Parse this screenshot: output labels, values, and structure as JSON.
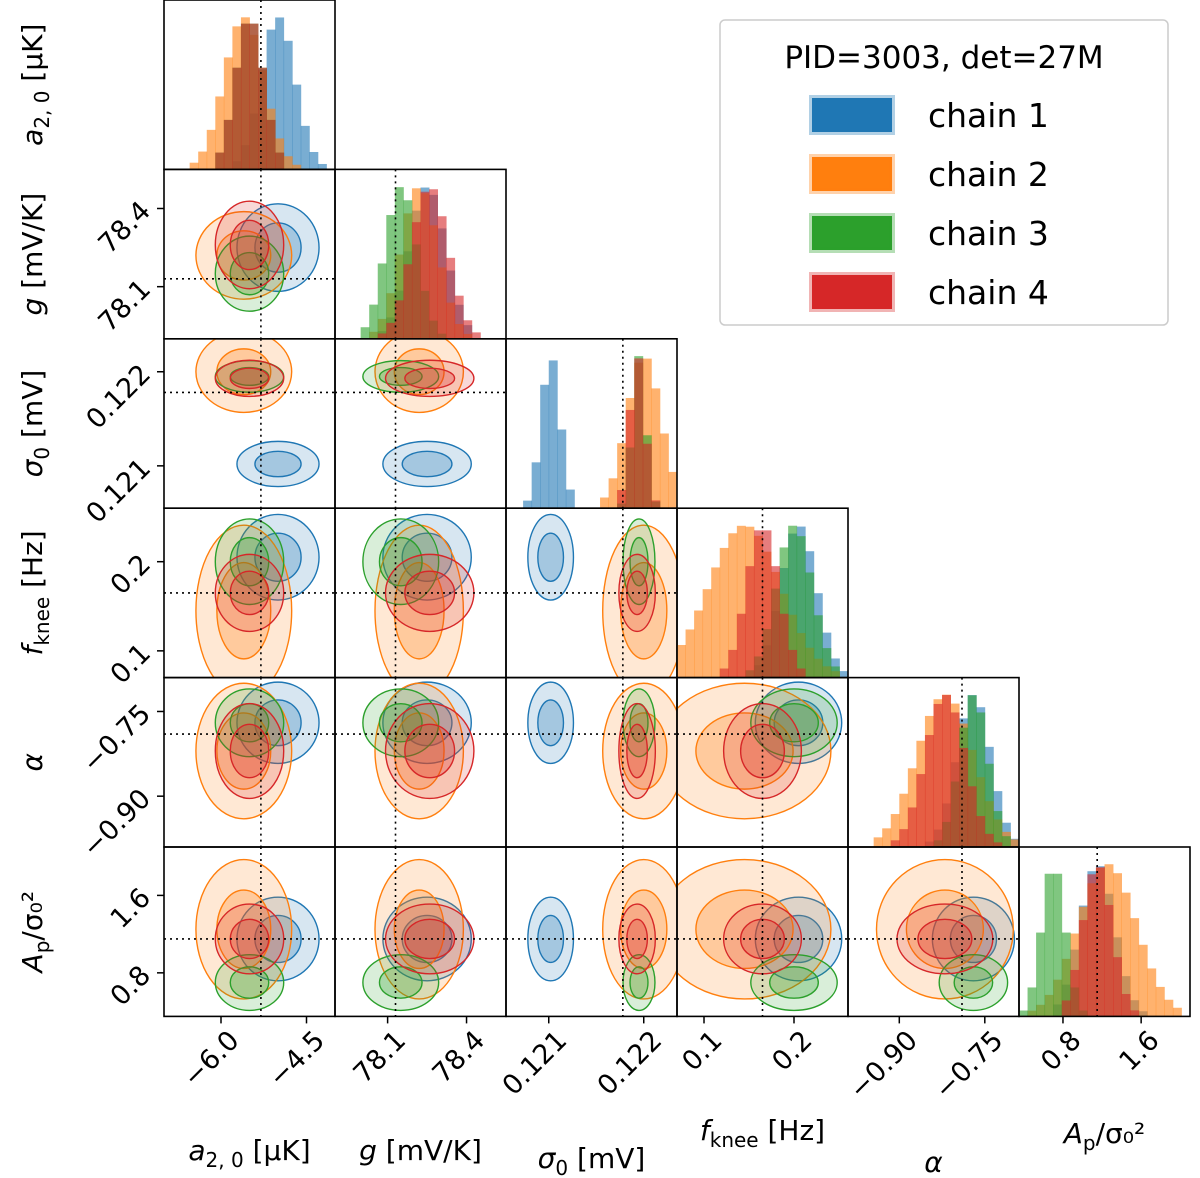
{
  "chart_data": {
    "type": "corner",
    "legend": {
      "title": "PID=3003, det=27M",
      "placement": "top-right"
    },
    "series": [
      {
        "name": "chain 1",
        "color": "#1f77b4"
      },
      {
        "name": "chain 2",
        "color": "#ff7f0e"
      },
      {
        "name": "chain 3",
        "color": "#2ca02c"
      },
      {
        "name": "chain 4",
        "color": "#d62728"
      }
    ],
    "parameters": [
      {
        "key": "a20",
        "label_main": "a",
        "label_sub": "2, 0",
        "label_unit": " [μK]",
        "truth": -5.3,
        "range": [
          -7.0,
          -4.0
        ],
        "ticks": [
          -6.0,
          -4.5
        ],
        "tick_labels": [
          "−6.0",
          "−4.5"
        ],
        "means": [
          -5.0,
          -5.6,
          -5.5,
          -5.5
        ],
        "sds": [
          0.3,
          0.35,
          0.25,
          0.25
        ]
      },
      {
        "key": "g",
        "label_main": "g",
        "label_sub": "",
        "label_unit": " [mV/K]",
        "truth": 78.13,
        "range": [
          77.9,
          78.55
        ],
        "ticks": [
          78.1,
          78.4
        ],
        "tick_labels": [
          "78.1",
          "78.4"
        ],
        "means": [
          78.25,
          78.22,
          78.15,
          78.26
        ],
        "sds": [
          0.07,
          0.07,
          0.06,
          0.07
        ]
      },
      {
        "key": "sigma0",
        "label_main": "σ",
        "label_sub": "0",
        "label_unit": " [mV]",
        "truth": 0.12178,
        "range": [
          0.12055,
          0.12235
        ],
        "ticks": [
          0.121,
          0.122
        ],
        "tick_labels": [
          "0.121",
          "0.122"
        ],
        "means": [
          0.12102,
          0.122,
          0.12195,
          0.12193
        ],
        "sds": [
          0.0001,
          0.00018,
          7e-05,
          8e-05
        ]
      },
      {
        "key": "fknee",
        "label_main": "f",
        "label_sub": "knee",
        "label_unit": " [Hz]",
        "truth": 0.165,
        "range": [
          0.07,
          0.26
        ],
        "ticks": [
          0.1,
          0.2
        ],
        "tick_labels": [
          "0.1",
          "0.2"
        ],
        "means": [
          0.205,
          0.145,
          0.2,
          0.165
        ],
        "sds": [
          0.02,
          0.04,
          0.02,
          0.018
        ]
      },
      {
        "key": "alpha",
        "label_main": "α",
        "label_sub": "",
        "label_unit": "",
        "truth": -0.79,
        "range": [
          -0.99,
          -0.69
        ],
        "ticks": [
          -0.9,
          -0.75
        ],
        "tick_labels": [
          "−0.90",
          "−0.75"
        ],
        "means": [
          -0.77,
          -0.82,
          -0.77,
          -0.82
        ],
        "sds": [
          0.03,
          0.05,
          0.025,
          0.035
        ]
      },
      {
        "key": "Ap",
        "label_main": "A",
        "label_sub": "p",
        "label_unit": "/σ₀²",
        "truth": 1.15,
        "range": [
          0.35,
          2.1
        ],
        "ticks": [
          0.8,
          1.6
        ],
        "tick_labels": [
          "0.8",
          "1.6"
        ],
        "means": [
          1.15,
          1.25,
          0.7,
          1.15
        ],
        "sds": [
          0.18,
          0.3,
          0.12,
          0.15
        ]
      }
    ],
    "truth_line_style": "dotted",
    "grid": false
  }
}
